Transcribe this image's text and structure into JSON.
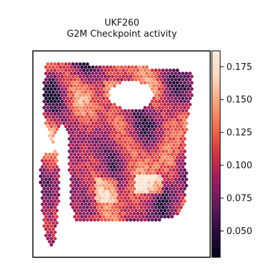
{
  "chart_data": {
    "type": "heatmap",
    "title_lines": [
      "UKF260",
      "G2M Checkpoint activity"
    ],
    "colormap": "rocket",
    "color_stops": [
      "#03051a",
      "#2a0e3d",
      "#611a5b",
      "#9b1b5f",
      "#d33240",
      "#f06a4d",
      "#f6a47a",
      "#fbd9c2",
      "#faebdd"
    ],
    "colorbar": {
      "min": 0.03,
      "max": 0.187,
      "ticks": [
        0.05,
        0.075,
        0.1,
        0.125,
        0.15,
        0.175
      ],
      "tick_labels": [
        "0.050",
        "0.075",
        "0.100",
        "0.125",
        "0.150",
        "0.175"
      ]
    },
    "axes": {
      "xticks": false,
      "yticks": false,
      "grid": false,
      "frame": true
    },
    "spot_activity_range": [
      0.035,
      0.185
    ]
  }
}
